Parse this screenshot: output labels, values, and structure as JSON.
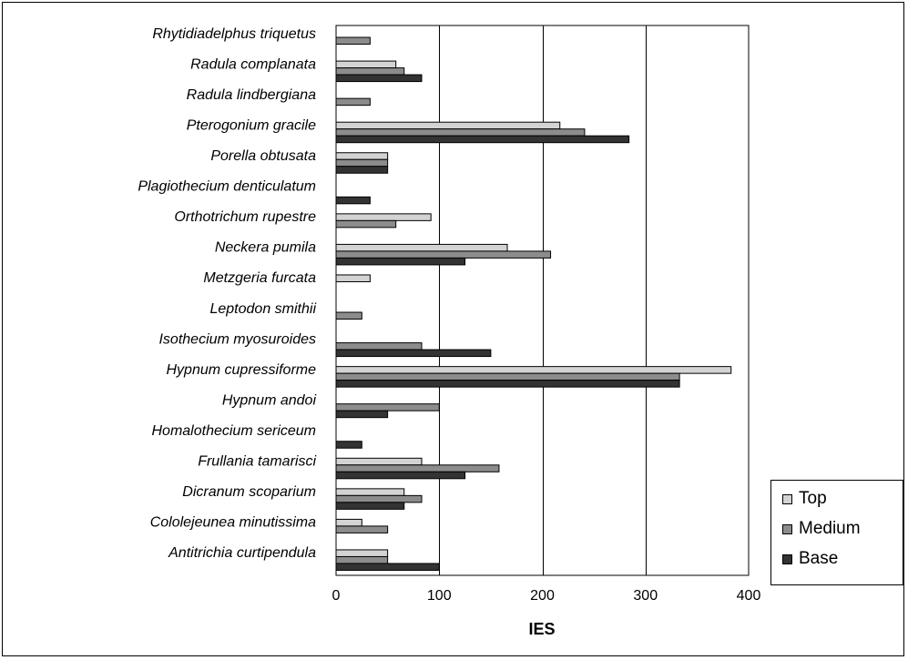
{
  "chart_data": {
    "type": "bar",
    "orientation": "horizontal",
    "title": "",
    "xlabel": "IES",
    "ylabel": "",
    "xlim": [
      0,
      400
    ],
    "xticks": [
      0,
      100,
      200,
      300,
      400
    ],
    "grid": true,
    "legend_position": "bottom-right",
    "categories": [
      "Rhytidiadelphus triquetus",
      "Radula complanata",
      "Radula lindbergiana",
      "Pterogonium gracile",
      "Porella obtusata",
      "Plagiothecium denticulatum",
      "Orthotrichum rupestre",
      "Neckera pumila",
      "Metzgeria furcata",
      "Leptodon smithii",
      "Isothecium myosuroides",
      "Hypnum cupressiforme",
      "Hypnum andoi",
      "Homalothecium sericeum",
      "Frullania tamarisci",
      "Dicranum scoparium",
      "Cololejeunea minutissima",
      "Antitrichia curtipendula"
    ],
    "series": [
      {
        "name": "Top",
        "color": "#d3d3d3",
        "values": [
          0,
          58,
          0,
          217,
          50,
          0,
          92,
          166,
          33,
          0,
          0,
          383,
          0,
          0,
          83,
          66,
          25,
          50
        ]
      },
      {
        "name": "Medium",
        "color": "#8c8c8c",
        "values": [
          33,
          66,
          33,
          241,
          50,
          0,
          58,
          208,
          0,
          25,
          83,
          333,
          100,
          0,
          158,
          83,
          50,
          50
        ]
      },
      {
        "name": "Base",
        "color": "#333333",
        "values": [
          0,
          83,
          0,
          284,
          50,
          33,
          0,
          125,
          0,
          0,
          150,
          333,
          50,
          25,
          125,
          66,
          0,
          100
        ]
      }
    ]
  }
}
